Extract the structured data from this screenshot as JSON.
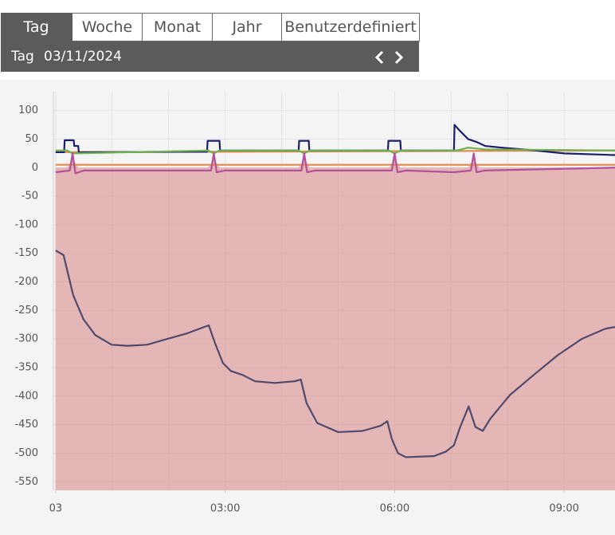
{
  "tabs": [
    "Tag",
    "Woche",
    "Monat",
    "Jahr",
    "Benutzerdefiniert"
  ],
  "period": {
    "label": "Tag",
    "date": "03/11/2024"
  },
  "chart_data": {
    "type": "line",
    "xlim": [
      -0.04,
      9.9
    ],
    "ylim": [
      -565,
      133
    ],
    "yticks": [
      100,
      50,
      0,
      -50,
      -100,
      -150,
      -200,
      -250,
      -300,
      -350,
      -400,
      -450,
      -500,
      -550
    ],
    "xticks": [
      {
        "value": 0,
        "label": "03"
      },
      {
        "value": 3,
        "label": "03:00"
      },
      {
        "value": 6,
        "label": "06:00"
      },
      {
        "value": 9,
        "label": "09:00"
      }
    ],
    "xgrid": [
      0,
      1,
      2,
      3,
      4,
      5,
      6,
      7,
      8,
      9
    ],
    "grid": true,
    "series": [
      {
        "kind": "area",
        "color": "#d98c8c",
        "x": [
          0,
          0.2,
          0.3,
          0.4,
          2.7,
          2.8,
          2.9,
          4.3,
          4.4,
          4.5,
          5.9,
          6.0,
          6.1,
          7.3,
          7.4,
          7.5,
          9.9
        ],
        "values": [
          0,
          0,
          15,
          0,
          0,
          15,
          0,
          0,
          15,
          0,
          0,
          15,
          0,
          0,
          15,
          0,
          0
        ]
      },
      {
        "color": "#e2894c",
        "x": [
          0,
          9.9
        ],
        "values": [
          5,
          5
        ]
      },
      {
        "color": "#e2894c",
        "x": [
          0,
          9.9
        ],
        "values": [
          27,
          30
        ]
      },
      {
        "color": "#1d1f6b",
        "x": [
          0,
          0.15,
          0.16,
          0.32,
          0.33,
          0.4,
          0.41,
          2.68,
          2.69,
          2.9,
          2.91,
          4.3,
          4.31,
          4.48,
          4.49,
          5.88,
          5.89,
          6.1,
          6.11,
          7.05,
          7.06,
          7.15,
          7.3,
          7.45,
          7.6,
          7.9,
          8.5,
          9.0,
          9.9
        ],
        "values": [
          27,
          27,
          48,
          48,
          38,
          38,
          27,
          28,
          47,
          47,
          30,
          30,
          47,
          47,
          30,
          30,
          47,
          47,
          30,
          30,
          75,
          65,
          50,
          45,
          38,
          35,
          30,
          25,
          22
        ]
      },
      {
        "color": "#6fb052",
        "x": [
          0,
          0.2,
          0.3,
          2.7,
          2.8,
          2.9,
          4.3,
          4.4,
          4.5,
          5.9,
          6.0,
          6.1,
          7.1,
          7.3,
          7.6,
          9.9
        ],
        "values": [
          30,
          30,
          25,
          30,
          25,
          30,
          30,
          25,
          30,
          30,
          25,
          30,
          30,
          35,
          32,
          30
        ]
      },
      {
        "color": "#b5509b",
        "x": [
          0,
          0.25,
          0.3,
          0.35,
          0.5,
          2.75,
          2.8,
          2.85,
          3.0,
          4.35,
          4.4,
          4.45,
          4.6,
          5.95,
          6.0,
          6.05,
          6.2,
          7.05,
          7.35,
          7.4,
          7.45,
          7.6,
          9.9
        ],
        "values": [
          -8,
          -5,
          25,
          -10,
          -5,
          -5,
          25,
          -8,
          -5,
          -5,
          25,
          -8,
          -5,
          -5,
          25,
          -8,
          -5,
          -8,
          -5,
          25,
          -8,
          -5,
          0
        ]
      },
      {
        "color": "#504a6c",
        "x": [
          0,
          0.14,
          0.31,
          0.49,
          0.7,
          0.99,
          1.27,
          1.62,
          1.97,
          2.33,
          2.71,
          2.82,
          2.96,
          3.1,
          3.31,
          3.53,
          3.88,
          4.23,
          4.34,
          4.44,
          4.63,
          5.0,
          5.43,
          5.75,
          5.87,
          5.95,
          6.06,
          6.2,
          6.7,
          6.91,
          7.05,
          7.16,
          7.31,
          7.43,
          7.56,
          7.69,
          8.04,
          8.46,
          8.89,
          9.31,
          9.73,
          9.9
        ],
        "values": [
          -145,
          -153,
          -223,
          -265,
          -293,
          -310,
          -312,
          -310,
          -300,
          -290,
          -276,
          -307,
          -342,
          -356,
          -363,
          -374,
          -377,
          -374,
          -371,
          -412,
          -447,
          -463,
          -461,
          -452,
          -444,
          -475,
          -500,
          -507,
          -505,
          -497,
          -486,
          -454,
          -418,
          -454,
          -461,
          -440,
          -398,
          -363,
          -328,
          -300,
          -282,
          -279
        ]
      }
    ]
  }
}
